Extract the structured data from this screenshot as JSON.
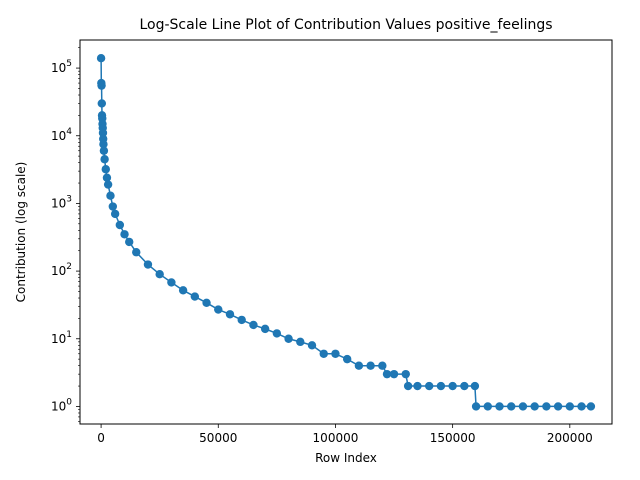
{
  "chart_data": {
    "type": "line",
    "title": "Log-Scale Line Plot of Contribution Values positive_feelings",
    "xlabel": "Row Index",
    "ylabel": "Contribution (log scale)",
    "yscale": "log",
    "xlim": [
      -9000,
      218000
    ],
    "ylim": [
      0.55,
      260000
    ],
    "grid": false,
    "legend": "none",
    "color": "#1f77b4",
    "marker": "circle",
    "x_ticks": [
      {
        "value": 0,
        "label": "0"
      },
      {
        "value": 50000,
        "label": "50000"
      },
      {
        "value": 100000,
        "label": "100000"
      },
      {
        "value": 150000,
        "label": "150000"
      },
      {
        "value": 200000,
        "label": "200000"
      }
    ],
    "y_ticks": [
      {
        "value": 1,
        "base": "10",
        "exp": "0"
      },
      {
        "value": 10,
        "base": "10",
        "exp": "1"
      },
      {
        "value": 100,
        "base": "10",
        "exp": "2"
      },
      {
        "value": 1000,
        "base": "10",
        "exp": "3"
      },
      {
        "value": 10000,
        "base": "10",
        "exp": "4"
      },
      {
        "value": 100000,
        "base": "10",
        "exp": "5"
      }
    ],
    "series": [
      {
        "x": [
          0,
          100,
          200,
          300,
          400,
          500,
          600,
          700,
          800,
          900,
          1000,
          1200,
          1500,
          2000,
          2500,
          3000,
          4000,
          5000,
          6000,
          8000,
          10000,
          12000,
          15000,
          20000,
          25000,
          30000,
          35000,
          40000,
          45000,
          50000,
          55000,
          60000,
          65000,
          70000,
          75000,
          80000,
          85000,
          90000,
          95000,
          100000,
          105000,
          110000,
          115000,
          120000,
          122000,
          125000,
          130000,
          131000,
          135000,
          140000,
          145000,
          150000,
          155000,
          159500,
          160000,
          165000,
          170000,
          175000,
          180000,
          185000,
          190000,
          195000,
          200000,
          205000,
          209000
        ],
        "y": [
          140000,
          60000,
          55000,
          30000,
          20000,
          18000,
          15000,
          13000,
          11000,
          9000,
          7500,
          6000,
          4500,
          3200,
          2400,
          1900,
          1300,
          900,
          700,
          480,
          350,
          270,
          190,
          125,
          90,
          68,
          52,
          42,
          34,
          27,
          23,
          19,
          16,
          14,
          12,
          10,
          9,
          8,
          6,
          6,
          5,
          4,
          4,
          4,
          3,
          3,
          3,
          2,
          2,
          2,
          2,
          2,
          2,
          2,
          1,
          1,
          1,
          1,
          1,
          1,
          1,
          1,
          1,
          1,
          1
        ]
      }
    ]
  }
}
